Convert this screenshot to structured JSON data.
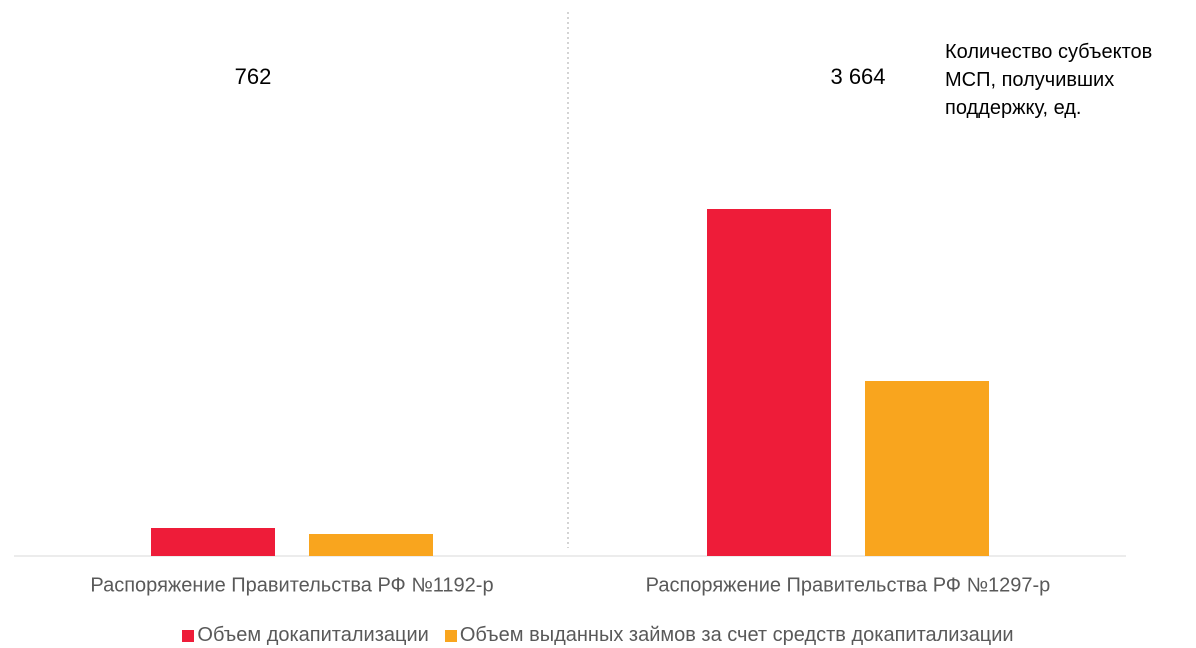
{
  "chart_data": {
    "type": "bar",
    "categories": [
      "Распоряжение Правительства РФ №1192-р",
      "Распоряжение Правительства РФ №1297-р"
    ],
    "series": [
      {
        "name": "Объем докапитализации",
        "color": "#ee1c39",
        "values": [
          28,
          347
        ]
      },
      {
        "name": "Объем выданных займов за счет средств докапитализации",
        "color": "#f9a51e",
        "values": [
          22,
          175
        ]
      }
    ],
    "ylim": [
      0,
      400
    ],
    "counts": {
      "name": "Количество субъектов МСП, получивших поддержку, ед.",
      "values": [
        762,
        3664
      ],
      "value_labels": [
        "762",
        "3 664"
      ]
    },
    "legend": "bottom"
  }
}
